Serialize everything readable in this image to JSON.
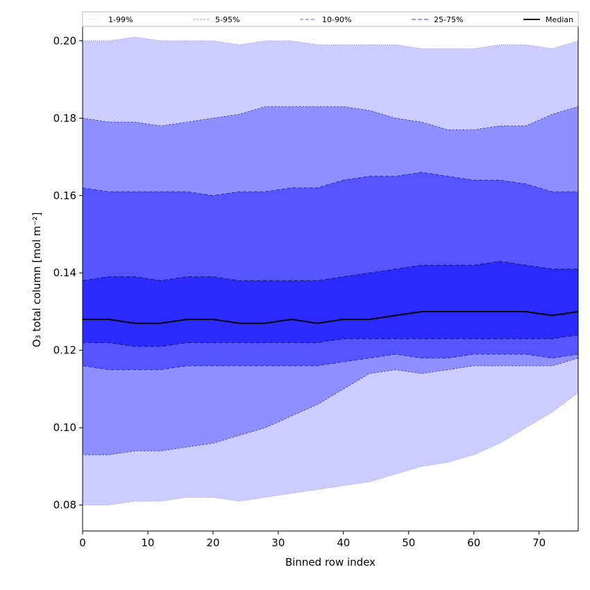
{
  "chart_data": {
    "type": "area",
    "xlabel": "Binned row index",
    "ylabel": "O₃ total column [mol m⁻²]",
    "xlim": [
      0,
      76
    ],
    "ylim": [
      0.0733,
      0.2075
    ],
    "x_ticks": [
      0,
      10,
      20,
      30,
      40,
      50,
      60,
      70
    ],
    "y_ticks": [
      0.08,
      0.1,
      0.12,
      0.14,
      0.16,
      0.18,
      0.2
    ],
    "x_tick_labels": [
      "0",
      "10",
      "20",
      "30",
      "40",
      "50",
      "60",
      "70"
    ],
    "y_tick_labels": [
      "0.08",
      "0.10",
      "0.12",
      "0.14",
      "0.16",
      "0.18",
      "0.20"
    ],
    "x": [
      0,
      4,
      8,
      12,
      16,
      20,
      24,
      28,
      32,
      36,
      40,
      44,
      48,
      52,
      56,
      60,
      64,
      68,
      72,
      76
    ],
    "bands": [
      {
        "name": "1-99%",
        "fill": "#ccccff",
        "edge": "#9999cc",
        "dash": "1,2",
        "lower": [
          0.08,
          0.08,
          0.081,
          0.081,
          0.082,
          0.082,
          0.081,
          0.082,
          0.083,
          0.084,
          0.085,
          0.086,
          0.088,
          0.09,
          0.091,
          0.093,
          0.096,
          0.1,
          0.104,
          0.109
        ],
        "upper": [
          0.2,
          0.2,
          0.201,
          0.2,
          0.2,
          0.2,
          0.199,
          0.2,
          0.2,
          0.199,
          0.199,
          0.199,
          0.199,
          0.198,
          0.198,
          0.198,
          0.199,
          0.199,
          0.198,
          0.2
        ]
      },
      {
        "name": "5-95%",
        "fill": "#8f8fff",
        "edge": "#5555aa",
        "dash": "3,2",
        "lower": [
          0.093,
          0.093,
          0.094,
          0.094,
          0.095,
          0.096,
          0.098,
          0.1,
          0.103,
          0.106,
          0.11,
          0.114,
          0.115,
          0.114,
          0.115,
          0.116,
          0.116,
          0.116,
          0.116,
          0.118
        ],
        "upper": [
          0.18,
          0.179,
          0.179,
          0.178,
          0.179,
          0.18,
          0.181,
          0.183,
          0.183,
          0.183,
          0.183,
          0.182,
          0.18,
          0.179,
          0.177,
          0.177,
          0.178,
          0.178,
          0.181,
          0.183
        ]
      },
      {
        "name": "10-90%",
        "fill": "#5555ff",
        "edge": "#333399",
        "dash": "5,3",
        "lower": [
          0.116,
          0.115,
          0.115,
          0.115,
          0.116,
          0.116,
          0.116,
          0.116,
          0.116,
          0.116,
          0.117,
          0.118,
          0.119,
          0.118,
          0.118,
          0.119,
          0.119,
          0.119,
          0.118,
          0.119
        ],
        "upper": [
          0.162,
          0.161,
          0.161,
          0.161,
          0.161,
          0.16,
          0.161,
          0.161,
          0.162,
          0.162,
          0.164,
          0.165,
          0.165,
          0.166,
          0.165,
          0.164,
          0.164,
          0.163,
          0.161,
          0.161
        ]
      },
      {
        "name": "25-75%",
        "fill": "#2b2bff",
        "edge": "#1a1a66",
        "dash": "6,3",
        "lower": [
          0.122,
          0.122,
          0.121,
          0.121,
          0.122,
          0.122,
          0.122,
          0.122,
          0.122,
          0.122,
          0.123,
          0.123,
          0.123,
          0.123,
          0.123,
          0.123,
          0.123,
          0.123,
          0.123,
          0.124
        ],
        "upper": [
          0.138,
          0.139,
          0.139,
          0.138,
          0.139,
          0.139,
          0.138,
          0.138,
          0.138,
          0.138,
          0.139,
          0.14,
          0.141,
          0.142,
          0.142,
          0.142,
          0.143,
          0.142,
          0.141,
          0.141
        ]
      }
    ],
    "median": {
      "name": "Median",
      "color": "#000000",
      "values": [
        0.128,
        0.128,
        0.127,
        0.127,
        0.128,
        0.128,
        0.127,
        0.127,
        0.128,
        0.127,
        0.128,
        0.128,
        0.129,
        0.13,
        0.13,
        0.13,
        0.13,
        0.13,
        0.129,
        0.13
      ]
    },
    "legend": {
      "placement": "top",
      "entries": [
        "1-99%",
        "5-95%",
        "10-90%",
        "25-75%",
        "Median"
      ]
    }
  }
}
